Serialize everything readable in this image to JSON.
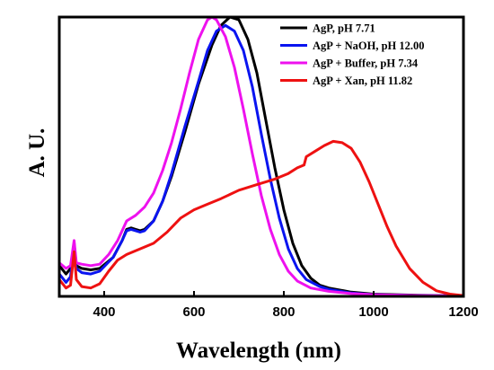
{
  "chart_data": {
    "type": "line",
    "title": "",
    "xlabel": "Wavelength (nm)",
    "ylabel": "A. U.",
    "xlim": [
      300,
      1200
    ],
    "ylim": [
      0,
      1
    ],
    "xticks": [
      400,
      600,
      800,
      1000,
      1200
    ],
    "grid": false,
    "legend_position": "top-right",
    "series": [
      {
        "name": "AgP, pH 7.71",
        "color": "#000000",
        "points": [
          [
            300,
            0.11
          ],
          [
            315,
            0.08
          ],
          [
            325,
            0.1
          ],
          [
            333,
            0.19
          ],
          [
            338,
            0.11
          ],
          [
            350,
            0.1
          ],
          [
            370,
            0.095
          ],
          [
            390,
            0.1
          ],
          [
            420,
            0.14
          ],
          [
            440,
            0.2
          ],
          [
            450,
            0.24
          ],
          [
            460,
            0.245
          ],
          [
            470,
            0.24
          ],
          [
            480,
            0.235
          ],
          [
            490,
            0.24
          ],
          [
            510,
            0.27
          ],
          [
            530,
            0.34
          ],
          [
            550,
            0.43
          ],
          [
            580,
            0.59
          ],
          [
            610,
            0.76
          ],
          [
            640,
            0.9
          ],
          [
            660,
            0.97
          ],
          [
            680,
            1.0
          ],
          [
            700,
            0.99
          ],
          [
            720,
            0.92
          ],
          [
            740,
            0.8
          ],
          [
            760,
            0.63
          ],
          [
            780,
            0.46
          ],
          [
            800,
            0.31
          ],
          [
            820,
            0.19
          ],
          [
            840,
            0.11
          ],
          [
            860,
            0.065
          ],
          [
            880,
            0.04
          ],
          [
            900,
            0.03
          ],
          [
            950,
            0.015
          ],
          [
            1000,
            0.008
          ],
          [
            1100,
            0.004
          ],
          [
            1200,
            0.002
          ]
        ]
      },
      {
        "name": "AgP + NaOH, pH 12.00",
        "color": "#0a14f0",
        "points": [
          [
            300,
            0.08
          ],
          [
            315,
            0.05
          ],
          [
            325,
            0.07
          ],
          [
            333,
            0.19
          ],
          [
            338,
            0.1
          ],
          [
            350,
            0.085
          ],
          [
            370,
            0.08
          ],
          [
            390,
            0.09
          ],
          [
            420,
            0.14
          ],
          [
            440,
            0.2
          ],
          [
            450,
            0.235
          ],
          [
            460,
            0.24
          ],
          [
            470,
            0.235
          ],
          [
            480,
            0.23
          ],
          [
            490,
            0.235
          ],
          [
            510,
            0.27
          ],
          [
            530,
            0.34
          ],
          [
            550,
            0.44
          ],
          [
            580,
            0.61
          ],
          [
            610,
            0.77
          ],
          [
            630,
            0.88
          ],
          [
            650,
            0.95
          ],
          [
            670,
            0.97
          ],
          [
            690,
            0.95
          ],
          [
            710,
            0.88
          ],
          [
            730,
            0.75
          ],
          [
            750,
            0.58
          ],
          [
            770,
            0.42
          ],
          [
            790,
            0.28
          ],
          [
            810,
            0.17
          ],
          [
            830,
            0.1
          ],
          [
            850,
            0.06
          ],
          [
            880,
            0.035
          ],
          [
            900,
            0.025
          ],
          [
            950,
            0.012
          ],
          [
            1000,
            0.006
          ],
          [
            1100,
            0.003
          ],
          [
            1200,
            0.002
          ]
        ]
      },
      {
        "name": "AgP + Buffer, pH 7.34",
        "color": "#ee11ee",
        "points": [
          [
            300,
            0.12
          ],
          [
            315,
            0.1
          ],
          [
            325,
            0.11
          ],
          [
            333,
            0.2
          ],
          [
            338,
            0.12
          ],
          [
            350,
            0.115
          ],
          [
            370,
            0.11
          ],
          [
            390,
            0.115
          ],
          [
            410,
            0.15
          ],
          [
            430,
            0.2
          ],
          [
            450,
            0.27
          ],
          [
            470,
            0.29
          ],
          [
            490,
            0.32
          ],
          [
            510,
            0.37
          ],
          [
            530,
            0.45
          ],
          [
            550,
            0.55
          ],
          [
            570,
            0.67
          ],
          [
            590,
            0.8
          ],
          [
            610,
            0.92
          ],
          [
            630,
            0.99
          ],
          [
            640,
            1.0
          ],
          [
            650,
            0.99
          ],
          [
            670,
            0.93
          ],
          [
            690,
            0.82
          ],
          [
            710,
            0.67
          ],
          [
            730,
            0.51
          ],
          [
            750,
            0.36
          ],
          [
            770,
            0.24
          ],
          [
            790,
            0.15
          ],
          [
            810,
            0.09
          ],
          [
            830,
            0.055
          ],
          [
            860,
            0.03
          ],
          [
            900,
            0.018
          ],
          [
            950,
            0.01
          ],
          [
            1000,
            0.006
          ],
          [
            1100,
            0.003
          ],
          [
            1200,
            0.002
          ]
        ]
      },
      {
        "name": "AgP + Xan, pH 11.82",
        "color": "#ee1111",
        "points": [
          [
            300,
            0.06
          ],
          [
            315,
            0.03
          ],
          [
            325,
            0.04
          ],
          [
            333,
            0.16
          ],
          [
            338,
            0.06
          ],
          [
            350,
            0.035
          ],
          [
            370,
            0.03
          ],
          [
            390,
            0.045
          ],
          [
            410,
            0.09
          ],
          [
            430,
            0.13
          ],
          [
            450,
            0.15
          ],
          [
            480,
            0.17
          ],
          [
            510,
            0.19
          ],
          [
            540,
            0.23
          ],
          [
            570,
            0.28
          ],
          [
            600,
            0.31
          ],
          [
            630,
            0.33
          ],
          [
            660,
            0.35
          ],
          [
            700,
            0.38
          ],
          [
            740,
            0.4
          ],
          [
            780,
            0.42
          ],
          [
            810,
            0.44
          ],
          [
            830,
            0.46
          ],
          [
            845,
            0.47
          ],
          [
            850,
            0.5
          ],
          [
            870,
            0.52
          ],
          [
            890,
            0.54
          ],
          [
            910,
            0.555
          ],
          [
            930,
            0.55
          ],
          [
            950,
            0.53
          ],
          [
            970,
            0.48
          ],
          [
            990,
            0.41
          ],
          [
            1010,
            0.33
          ],
          [
            1030,
            0.25
          ],
          [
            1050,
            0.18
          ],
          [
            1080,
            0.1
          ],
          [
            1110,
            0.05
          ],
          [
            1140,
            0.02
          ],
          [
            1170,
            0.008
          ],
          [
            1200,
            0.003
          ]
        ]
      }
    ]
  }
}
